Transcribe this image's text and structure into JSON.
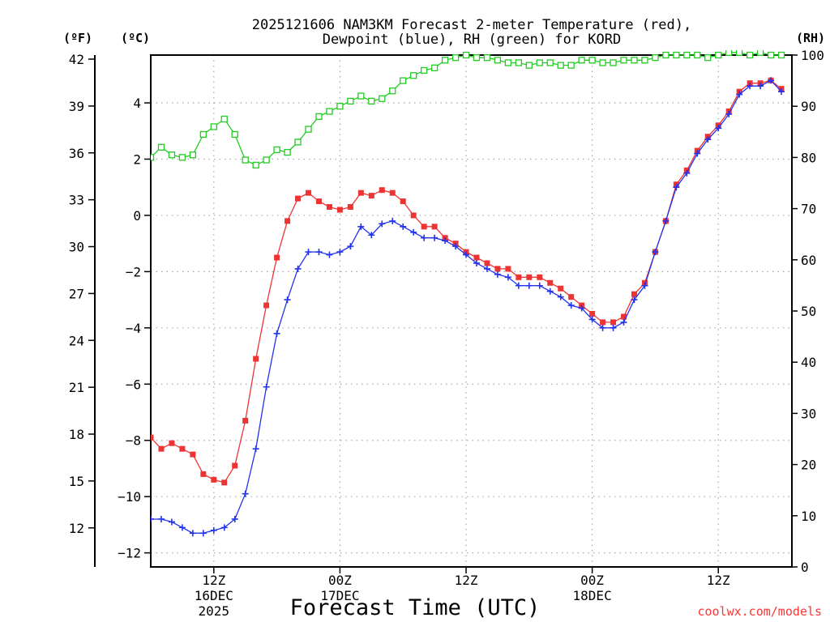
{
  "chart_data": {
    "type": "line",
    "title_line1": "2025121606 NAM3KM Forecast 2-meter Temperature (red),",
    "title_line2": "Dewpoint (blue), RH (green) for KORD",
    "xlabel": "Forecast Time (UTC)",
    "credit": "coolwx.com/models",
    "unit_left_f": "(ºF)",
    "unit_left_c": "(ºC)",
    "unit_right": "(RH)",
    "x_hours_range": [
      0,
      61
    ],
    "x_ticks": [
      {
        "hour": 6,
        "label1": "12Z",
        "label2": "16DEC",
        "label3": "2025"
      },
      {
        "hour": 18,
        "label1": "00Z",
        "label2": "17DEC",
        "label3": ""
      },
      {
        "hour": 30,
        "label1": "12Z",
        "label2": "",
        "label3": ""
      },
      {
        "hour": 42,
        "label1": "00Z",
        "label2": "18DEC",
        "label3": ""
      },
      {
        "hour": 54,
        "label1": "12Z",
        "label2": "",
        "label3": ""
      }
    ],
    "ylim_c": [
      -12.5,
      5.7
    ],
    "yticks_c": [
      -12,
      -10,
      -8,
      -6,
      -4,
      -2,
      0,
      2,
      4
    ],
    "yticks_c_labels": [
      "−12",
      "−10",
      "−8",
      "−6",
      "−4",
      "−2",
      "0",
      "2",
      "4"
    ],
    "yticks_f": [
      12,
      15,
      18,
      21,
      24,
      27,
      30,
      33,
      36,
      39,
      42
    ],
    "yticks_f_labels": [
      "12",
      "15",
      "18",
      "21",
      "24",
      "27",
      "30",
      "33",
      "36",
      "39",
      "42"
    ],
    "ylim_rh": [
      0,
      100
    ],
    "yticks_rh": [
      0,
      10,
      20,
      30,
      40,
      50,
      60,
      70,
      80,
      90,
      100
    ],
    "yticks_rh_labels": [
      "0",
      "10",
      "20",
      "30",
      "40",
      "50",
      "60",
      "70",
      "80",
      "90",
      "100"
    ],
    "grid": true,
    "colors": {
      "temperature": "#ee3333",
      "dewpoint": "#2233ee",
      "rh": "#22cc22",
      "grid": "#aaaaaa",
      "axis": "#000000"
    },
    "series": [
      {
        "name": "Temperature (°C)",
        "color": "#ee3333",
        "marker": "filled-square",
        "values": [
          -7.9,
          -8.3,
          -8.1,
          -8.3,
          -8.5,
          -9.2,
          -9.4,
          -9.5,
          -8.9,
          -7.3,
          -5.1,
          -3.2,
          -1.5,
          -0.2,
          0.6,
          0.8,
          0.5,
          0.3,
          0.2,
          0.3,
          0.8,
          0.7,
          0.9,
          0.8,
          0.5,
          0.0,
          -0.4,
          -0.4,
          -0.8,
          -1.0,
          -1.3,
          -1.5,
          -1.7,
          -1.9,
          -1.9,
          -2.2,
          -2.2,
          -2.2,
          -2.4,
          -2.6,
          -2.9,
          -3.2,
          -3.5,
          -3.8,
          -3.8,
          -3.6,
          -2.8,
          -2.4,
          -1.3,
          -0.2,
          1.1,
          1.6,
          2.3,
          2.8,
          3.2,
          3.7,
          4.4,
          4.7,
          4.7,
          4.8,
          4.5
        ]
      },
      {
        "name": "Dewpoint (°C)",
        "color": "#2233ee",
        "marker": "plus",
        "values": [
          -10.8,
          -10.8,
          -10.9,
          -11.1,
          -11.3,
          -11.3,
          -11.2,
          -11.1,
          -10.8,
          -9.9,
          -8.3,
          -6.1,
          -4.2,
          -3.0,
          -1.9,
          -1.3,
          -1.3,
          -1.4,
          -1.3,
          -1.1,
          -0.4,
          -0.7,
          -0.3,
          -0.2,
          -0.4,
          -0.6,
          -0.8,
          -0.8,
          -0.9,
          -1.1,
          -1.4,
          -1.7,
          -1.9,
          -2.1,
          -2.2,
          -2.5,
          -2.5,
          -2.5,
          -2.7,
          -2.9,
          -3.2,
          -3.3,
          -3.7,
          -4.0,
          -4.0,
          -3.8,
          -3.0,
          -2.5,
          -1.3,
          -0.2,
          1.0,
          1.5,
          2.2,
          2.7,
          3.1,
          3.6,
          4.3,
          4.6,
          4.6,
          4.8,
          4.4
        ]
      },
      {
        "name": "RH (%)",
        "color": "#22cc22",
        "marker": "open-square",
        "values": [
          80,
          82,
          80.5,
          80,
          80.5,
          84.5,
          86,
          87.5,
          84.5,
          79.5,
          78.5,
          79.5,
          81.5,
          81,
          83,
          85.5,
          88,
          89,
          90,
          91,
          92,
          91,
          91.5,
          93,
          95,
          96,
          97,
          97.5,
          99,
          99.5,
          100,
          99.5,
          99.5,
          99,
          98.5,
          98.5,
          98,
          98.5,
          98.5,
          98,
          98,
          99,
          99,
          98.5,
          98.5,
          99,
          99,
          99,
          99.5,
          100,
          100,
          100,
          100,
          99.5,
          100,
          100.5,
          100.5,
          100,
          100.5,
          100,
          100
        ]
      }
    ]
  }
}
